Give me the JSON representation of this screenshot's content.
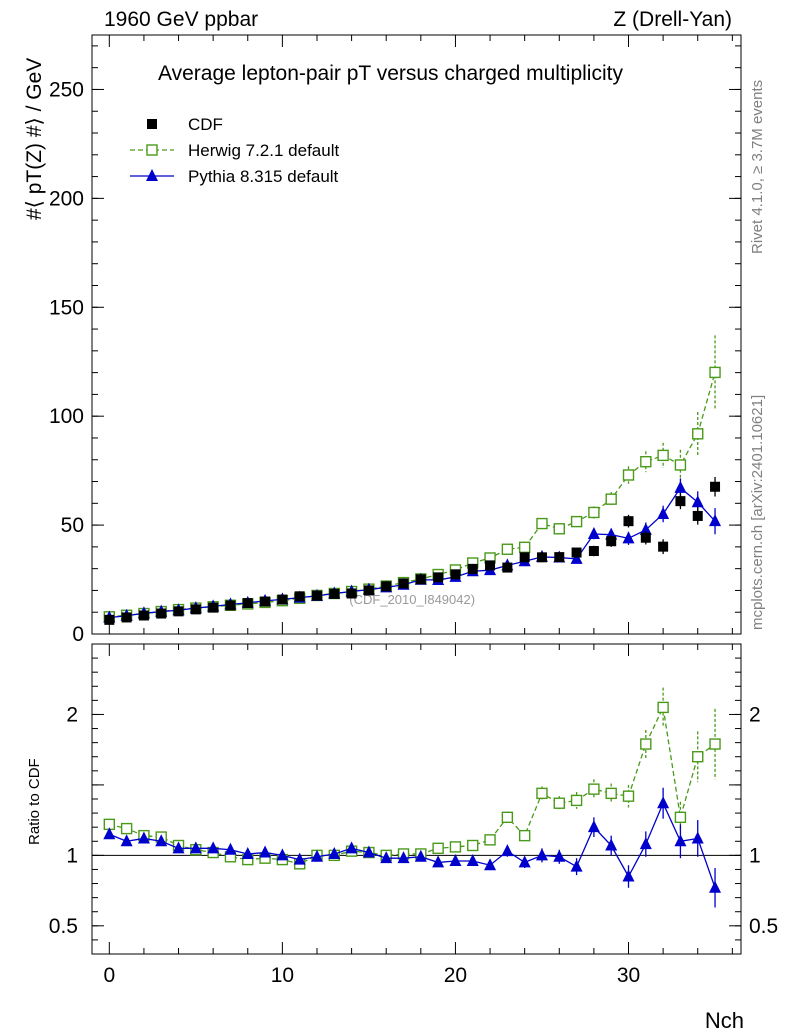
{
  "header": {
    "left": "1960 GeV ppbar",
    "right": "Z (Drell-Yan)"
  },
  "side_labels": {
    "rivet": "Rivet 4.1.0, ≥ 3.7M events",
    "mcplots": "mcplots.cern.ch [arXiv:2401.10621]"
  },
  "watermark": "(CDF_2010_I849042)",
  "colors": {
    "cdf": "#000000",
    "herwig": "#4a9a1a",
    "pythia": "#0000cc"
  },
  "chart_data": [
    {
      "type": "scatter",
      "panel": "main",
      "title": "Average lepton-pair pT versus charged multiplicity",
      "ylabel": "#⟨ pT(Z) #⟩ / GeV",
      "xlabel": "Nch",
      "xlim": [
        -1,
        36.5
      ],
      "ylim": [
        0,
        275
      ],
      "yticks": [
        0,
        50,
        100,
        150,
        200,
        250
      ],
      "xticks": [
        0,
        10,
        20,
        30
      ],
      "legend": [
        "CDF",
        "Herwig 7.2.1 default",
        "Pythia 8.315 default"
      ],
      "legend_position": "top-left",
      "x": [
        0,
        1,
        2,
        3,
        4,
        5,
        6,
        7,
        8,
        9,
        10,
        11,
        12,
        13,
        14,
        15,
        16,
        17,
        18,
        19,
        20,
        21,
        22,
        23,
        24,
        25,
        26,
        27,
        28,
        29,
        30,
        31,
        32,
        33,
        34,
        35
      ],
      "series": [
        {
          "name": "CDF",
          "marker": "square",
          "values": [
            6.5,
            7.6,
            8.5,
            9.4,
            10.4,
            11.3,
            12.1,
            13.1,
            14.2,
            14.9,
            15.8,
            17.3,
            17.6,
            18.4,
            18.6,
            20.0,
            21.9,
            23.2,
            25.1,
            26.0,
            27.4,
            29.9,
            31.5,
            30.5,
            35.2,
            35.2,
            35.3,
            37.4,
            38.1,
            42.6,
            51.8,
            44.2,
            40.1,
            61.0,
            54.2,
            67.6
          ],
          "errors": [
            0.3,
            0.3,
            0.3,
            0.3,
            0.3,
            0.3,
            0.3,
            0.3,
            0.3,
            0.4,
            0.4,
            0.4,
            0.4,
            0.5,
            0.5,
            0.5,
            0.6,
            0.7,
            0.8,
            0.9,
            1.0,
            1.1,
            1.3,
            1.4,
            1.6,
            1.8,
            2.0,
            2.2,
            2.4,
            2.6,
            2.9,
            3.1,
            3.4,
            3.7,
            4.0,
            4.5
          ]
        },
        {
          "name": "Herwig 7.2.1 default",
          "marker": "open-square",
          "line": "dashed",
          "values": [
            7.9,
            8.6,
            9.4,
            10.3,
            11.2,
            11.9,
            12.5,
            13.2,
            13.8,
            14.5,
            15.3,
            16.4,
            17.7,
            18.6,
            19.5,
            20.6,
            22.0,
            23.6,
            25.3,
            27.3,
            29.4,
            32.6,
            34.9,
            38.9,
            39.8,
            50.7,
            48.3,
            51.6,
            55.8,
            61.9,
            73.0,
            79.1,
            82.0,
            77.6,
            91.9,
            120.1
          ],
          "errors": [
            0.3,
            0.3,
            0.3,
            0.3,
            0.3,
            0.3,
            0.3,
            0.3,
            0.4,
            0.4,
            0.4,
            0.4,
            0.4,
            0.5,
            0.5,
            0.5,
            0.6,
            0.6,
            0.7,
            0.8,
            0.9,
            1.0,
            1.1,
            1.3,
            1.5,
            1.8,
            2.1,
            2.4,
            2.8,
            3.3,
            4.0,
            4.8,
            5.8,
            7.0,
            10.0,
            17.0
          ]
        },
        {
          "name": "Pythia 8.315 default",
          "marker": "triangle",
          "line": "solid",
          "values": [
            7.5,
            8.4,
            9.5,
            10.3,
            10.9,
            11.9,
            12.7,
            13.6,
            14.3,
            15.2,
            15.9,
            16.7,
            17.5,
            18.6,
            19.5,
            20.4,
            21.4,
            22.6,
            24.9,
            24.8,
            26.2,
            28.8,
            29.3,
            31.5,
            33.4,
            35.4,
            35.1,
            34.5,
            45.9,
            45.6,
            43.9,
            47.8,
            55.1,
            67.1,
            60.5,
            51.8
          ],
          "errors": [
            0.2,
            0.2,
            0.2,
            0.2,
            0.2,
            0.2,
            0.2,
            0.3,
            0.3,
            0.3,
            0.3,
            0.3,
            0.3,
            0.4,
            0.4,
            0.4,
            0.5,
            0.5,
            0.6,
            0.7,
            0.8,
            0.9,
            1.0,
            1.2,
            1.4,
            1.6,
            1.8,
            2.1,
            2.4,
            2.7,
            3.0,
            3.4,
            3.8,
            4.3,
            5.0,
            6.0
          ]
        }
      ]
    },
    {
      "type": "scatter",
      "panel": "ratio",
      "ylabel": "Ratio to CDF",
      "xlabel": "Nch",
      "xlim": [
        -1,
        36.5
      ],
      "ylim": [
        0.3,
        2.5
      ],
      "yticks": [
        0.5,
        1,
        2
      ],
      "reference_line": 1,
      "x": [
        0,
        1,
        2,
        3,
        4,
        5,
        6,
        7,
        8,
        9,
        10,
        11,
        12,
        13,
        14,
        15,
        16,
        17,
        18,
        19,
        20,
        21,
        22,
        23,
        24,
        25,
        26,
        27,
        28,
        29,
        30,
        31,
        32,
        33,
        34,
        35
      ],
      "series": [
        {
          "name": "Herwig 7.2.1 default",
          "values": [
            1.22,
            1.19,
            1.14,
            1.13,
            1.07,
            1.04,
            1.02,
            0.99,
            0.97,
            0.98,
            0.97,
            0.94,
            1.0,
            1.0,
            1.03,
            1.02,
            1.0,
            1.01,
            1.01,
            1.05,
            1.06,
            1.07,
            1.11,
            1.27,
            1.14,
            1.44,
            1.37,
            1.39,
            1.47,
            1.44,
            1.42,
            1.79,
            2.05,
            1.27,
            1.7,
            1.79
          ],
          "errors": [
            0.02,
            0.02,
            0.02,
            0.02,
            0.02,
            0.02,
            0.02,
            0.02,
            0.02,
            0.02,
            0.02,
            0.02,
            0.02,
            0.02,
            0.02,
            0.02,
            0.02,
            0.02,
            0.02,
            0.02,
            0.03,
            0.03,
            0.03,
            0.04,
            0.04,
            0.05,
            0.05,
            0.06,
            0.07,
            0.07,
            0.08,
            0.1,
            0.14,
            0.11,
            0.18,
            0.25
          ]
        },
        {
          "name": "Pythia 8.315 default",
          "values": [
            1.15,
            1.1,
            1.12,
            1.1,
            1.05,
            1.05,
            1.05,
            1.04,
            1.01,
            1.02,
            1.0,
            0.97,
            0.99,
            1.01,
            1.05,
            1.02,
            0.98,
            0.98,
            0.99,
            0.95,
            0.96,
            0.96,
            0.93,
            1.03,
            0.95,
            1.0,
            0.99,
            0.92,
            1.2,
            1.07,
            0.85,
            1.08,
            1.37,
            1.1,
            1.12,
            0.77
          ],
          "errors": [
            0.01,
            0.01,
            0.01,
            0.01,
            0.01,
            0.01,
            0.01,
            0.01,
            0.01,
            0.01,
            0.01,
            0.01,
            0.01,
            0.02,
            0.02,
            0.02,
            0.02,
            0.02,
            0.02,
            0.02,
            0.02,
            0.03,
            0.03,
            0.04,
            0.04,
            0.05,
            0.05,
            0.06,
            0.07,
            0.07,
            0.08,
            0.09,
            0.11,
            0.12,
            0.13,
            0.14
          ]
        }
      ]
    }
  ]
}
